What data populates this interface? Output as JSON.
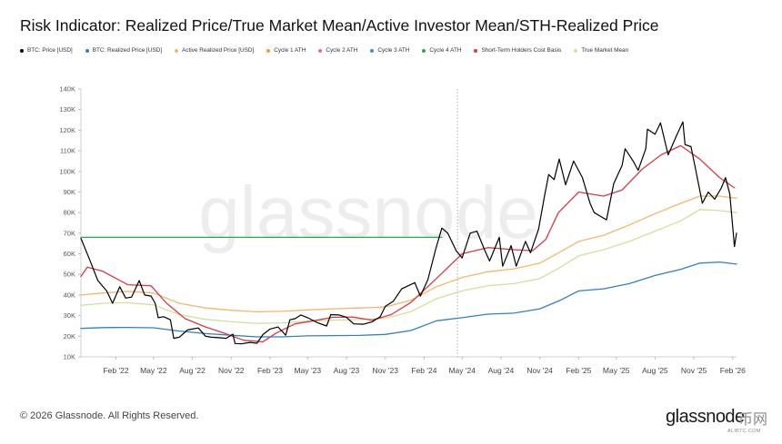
{
  "title": "Risk Indicator: Realized Price/True Market Mean/Active Investor Mean/STH-Realized Price",
  "legend": [
    {
      "label": "BTC: Price [USD]",
      "color": "#000000"
    },
    {
      "label": "BTC: Realized Price [USD]",
      "color": "#2f80c4"
    },
    {
      "label": "Active Realized Price [USD]",
      "color": "#f5b66b"
    },
    {
      "label": "Cycle 1 ATH",
      "color": "#f39c3c"
    },
    {
      "label": "Cycle 2 ATH",
      "color": "#f06b7a"
    },
    {
      "label": "Cycle 3 ATH",
      "color": "#3b8fd6"
    },
    {
      "label": "Cycle 4 ATH",
      "color": "#2aa84a"
    },
    {
      "label": "Short-Term Holders Cost Basis",
      "color": "#d63a47"
    },
    {
      "label": "True Market Mean",
      "color": "#cde39a"
    }
  ],
  "footer": "© 2026 Glassnode. All Rights Reserved.",
  "brand": "glassnode",
  "watermark": "glassnode",
  "sub_brand": "币网",
  "sub_brand_url": "ALIBTC.COM",
  "chart_data": {
    "type": "line",
    "title": "Risk Indicator: Realized Price/True Market Mean/Active Investor Mean/STH-Realized Price",
    "xlabel": "",
    "ylabel": "",
    "x_range": [
      "2021-11-10",
      "2026-02-10"
    ],
    "ylim": [
      10000,
      140000
    ],
    "y_ticks": [
      10000,
      20000,
      30000,
      40000,
      50000,
      60000,
      70000,
      80000,
      90000,
      100000,
      110000,
      120000,
      130000,
      140000
    ],
    "y_tick_labels": [
      "10K",
      "20K",
      "30K",
      "40K",
      "50K",
      "60K",
      "70K",
      "80K",
      "90K",
      "100K",
      "110K",
      "120K",
      "130K",
      "140K"
    ],
    "x_ticks": [
      {
        "date": "2022-02-01",
        "label": "Feb '22"
      },
      {
        "date": "2022-05-01",
        "label": "May '22"
      },
      {
        "date": "2022-08-01",
        "label": "Aug '22"
      },
      {
        "date": "2022-11-01",
        "label": "Nov '22"
      },
      {
        "date": "2023-02-01",
        "label": "Feb '23"
      },
      {
        "date": "2023-05-01",
        "label": "May '23"
      },
      {
        "date": "2023-08-01",
        "label": "Aug '23"
      },
      {
        "date": "2023-11-01",
        "label": "Nov '23"
      },
      {
        "date": "2024-02-01",
        "label": "Feb '24"
      },
      {
        "date": "2024-05-01",
        "label": "May '24"
      },
      {
        "date": "2024-08-01",
        "label": "Aug '24"
      },
      {
        "date": "2024-11-01",
        "label": "Nov '24"
      },
      {
        "date": "2025-02-01",
        "label": "Feb '25"
      },
      {
        "date": "2025-05-01",
        "label": "May '25"
      },
      {
        "date": "2025-08-01",
        "label": "Aug '25"
      },
      {
        "date": "2025-11-01",
        "label": "Nov '25"
      },
      {
        "date": "2026-02-01",
        "label": "Feb '26"
      }
    ],
    "vertical_marker_date": "2024-04-20",
    "grid": false,
    "series": [
      {
        "name": "BTC: Price [USD]",
        "color": "#000000",
        "x": [
          "2021-11-10",
          "2021-12-01",
          "2021-12-20",
          "2022-01-10",
          "2022-01-24",
          "2022-02-10",
          "2022-02-24",
          "2022-03-10",
          "2022-03-28",
          "2022-04-10",
          "2022-04-25",
          "2022-05-05",
          "2022-05-12",
          "2022-05-25",
          "2022-06-10",
          "2022-06-18",
          "2022-07-01",
          "2022-07-20",
          "2022-08-01",
          "2022-08-15",
          "2022-09-01",
          "2022-09-15",
          "2022-10-01",
          "2022-10-20",
          "2022-11-05",
          "2022-11-10",
          "2022-11-25",
          "2022-12-15",
          "2023-01-01",
          "2023-01-15",
          "2023-02-01",
          "2023-02-20",
          "2023-03-10",
          "2023-03-20",
          "2023-04-01",
          "2023-04-15",
          "2023-05-01",
          "2023-05-25",
          "2023-06-15",
          "2023-06-25",
          "2023-07-15",
          "2023-08-01",
          "2023-08-18",
          "2023-09-10",
          "2023-10-01",
          "2023-10-20",
          "2023-11-01",
          "2023-11-20",
          "2023-12-10",
          "2024-01-10",
          "2024-01-23",
          "2024-02-10",
          "2024-02-28",
          "2024-03-14",
          "2024-03-28",
          "2024-04-17",
          "2024-05-01",
          "2024-05-20",
          "2024-06-05",
          "2024-06-25",
          "2024-07-05",
          "2024-07-28",
          "2024-08-05",
          "2024-08-25",
          "2024-09-06",
          "2024-09-28",
          "2024-10-10",
          "2024-10-29",
          "2024-11-12",
          "2024-11-22",
          "2024-12-05",
          "2024-12-17",
          "2025-01-01",
          "2025-01-20",
          "2025-02-10",
          "2025-02-28",
          "2025-03-10",
          "2025-04-08",
          "2025-04-25",
          "2025-05-15",
          "2025-05-22",
          "2025-06-10",
          "2025-06-22",
          "2025-07-10",
          "2025-07-14",
          "2025-08-01",
          "2025-08-14",
          "2025-09-01",
          "2025-09-20",
          "2025-10-06",
          "2025-10-11",
          "2025-10-25",
          "2025-11-05",
          "2025-11-21",
          "2025-12-05",
          "2025-12-20",
          "2026-01-05",
          "2026-01-15",
          "2026-01-25",
          "2026-02-05",
          "2026-02-10"
        ],
        "y": [
          67500,
          57000,
          47000,
          42000,
          36000,
          44000,
          38500,
          39000,
          47000,
          40000,
          39500,
          36000,
          29000,
          29500,
          28000,
          19000,
          19500,
          23000,
          23500,
          24000,
          20000,
          19500,
          19300,
          19000,
          21000,
          16500,
          16300,
          17000,
          16600,
          20800,
          23500,
          24500,
          20500,
          28000,
          28500,
          30300,
          29000,
          26500,
          25000,
          30500,
          30300,
          29200,
          26000,
          25800,
          27000,
          29500,
          34500,
          37000,
          43000,
          46000,
          39500,
          47500,
          62000,
          72500,
          70000,
          61500,
          58000,
          70000,
          71000,
          61000,
          56500,
          68000,
          54000,
          64000,
          54000,
          66000,
          60500,
          72000,
          88000,
          98500,
          96000,
          106000,
          93500,
          105000,
          97000,
          84500,
          80000,
          76500,
          94000,
          103000,
          111000,
          105000,
          100500,
          111000,
          120500,
          118000,
          123500,
          108000,
          117000,
          124000,
          113000,
          112000,
          101000,
          84500,
          90000,
          86500,
          92000,
          97000,
          89000,
          63500,
          70000
        ]
      },
      {
        "name": "BTC: Realized Price [USD]",
        "color": "#2f80c4",
        "x": [
          "2021-11-10",
          "2022-01-01",
          "2022-03-01",
          "2022-05-01",
          "2022-07-01",
          "2022-09-01",
          "2022-11-01",
          "2023-01-01",
          "2023-03-01",
          "2023-05-01",
          "2023-07-01",
          "2023-09-01",
          "2023-11-01",
          "2024-01-01",
          "2024-03-01",
          "2024-05-01",
          "2024-07-01",
          "2024-09-01",
          "2024-11-01",
          "2024-12-20",
          "2025-02-01",
          "2025-04-01",
          "2025-06-01",
          "2025-08-01",
          "2025-10-01",
          "2025-11-15",
          "2026-01-01",
          "2026-02-10"
        ],
        "y": [
          23800,
          24200,
          24300,
          24100,
          22500,
          21300,
          20500,
          19700,
          19700,
          20200,
          20300,
          20400,
          20900,
          22800,
          27500,
          29000,
          30700,
          31200,
          33300,
          37500,
          42000,
          43000,
          45500,
          49500,
          52500,
          55500,
          56000,
          55000
        ]
      },
      {
        "name": "Active Realized Price [USD]",
        "color": "#f5b66b",
        "x": [
          "2021-11-10",
          "2022-01-01",
          "2022-03-01",
          "2022-05-01",
          "2022-07-01",
          "2022-09-01",
          "2022-11-01",
          "2023-01-01",
          "2023-03-01",
          "2023-05-01",
          "2023-07-01",
          "2023-09-01",
          "2023-11-01",
          "2024-01-01",
          "2024-03-01",
          "2024-05-01",
          "2024-07-01",
          "2024-09-01",
          "2024-11-01",
          "2024-12-20",
          "2025-02-01",
          "2025-04-01",
          "2025-06-01",
          "2025-08-01",
          "2025-10-01",
          "2025-11-15",
          "2026-01-01",
          "2026-02-10"
        ],
        "y": [
          40000,
          41000,
          41800,
          41000,
          36000,
          33700,
          32600,
          31800,
          32100,
          32800,
          33300,
          33700,
          34200,
          37500,
          44000,
          48500,
          51300,
          52700,
          55500,
          61000,
          66000,
          69000,
          74000,
          79500,
          84500,
          88000,
          88000,
          87000
        ]
      },
      {
        "name": "Cycle 4 ATH",
        "color": "#2aa84a",
        "x": [
          "2021-11-10",
          "2024-03-14"
        ],
        "y": [
          68000,
          68000
        ]
      },
      {
        "name": "Short-Term Holders Cost Basis",
        "color": "#d63a47",
        "x": [
          "2021-11-10",
          "2021-11-25",
          "2022-01-01",
          "2022-03-01",
          "2022-04-25",
          "2022-06-01",
          "2022-07-15",
          "2022-09-01",
          "2022-10-15",
          "2022-12-01",
          "2023-01-15",
          "2023-02-15",
          "2023-04-01",
          "2023-05-15",
          "2023-07-01",
          "2023-08-15",
          "2023-10-01",
          "2023-11-15",
          "2024-01-01",
          "2024-03-01",
          "2024-05-01",
          "2024-07-01",
          "2024-09-01",
          "2024-10-15",
          "2024-11-15",
          "2024-12-15",
          "2025-02-01",
          "2025-04-01",
          "2025-05-15",
          "2025-07-01",
          "2025-08-15",
          "2025-10-01",
          "2025-11-15",
          "2026-01-01",
          "2026-02-05"
        ],
        "y": [
          49000,
          53500,
          51500,
          45000,
          44500,
          36000,
          28500,
          24500,
          21500,
          18000,
          17300,
          21500,
          26000,
          27500,
          29200,
          29300,
          27800,
          30500,
          36500,
          48000,
          60000,
          63000,
          62000,
          61500,
          67000,
          80000,
          90000,
          88000,
          91000,
          101000,
          108000,
          112500,
          106000,
          97000,
          92000
        ]
      },
      {
        "name": "True Market Mean",
        "color": "#cde39a",
        "x": [
          "2021-11-10",
          "2022-01-01",
          "2022-03-01",
          "2022-05-01",
          "2022-07-01",
          "2022-09-01",
          "2022-11-01",
          "2023-01-01",
          "2023-03-01",
          "2023-05-01",
          "2023-07-01",
          "2023-09-01",
          "2023-11-01",
          "2024-01-01",
          "2024-03-01",
          "2024-05-01",
          "2024-07-01",
          "2024-09-01",
          "2024-11-01",
          "2024-12-20",
          "2025-02-01",
          "2025-04-01",
          "2025-06-01",
          "2025-08-01",
          "2025-10-01",
          "2025-11-15",
          "2026-01-01",
          "2026-02-10"
        ],
        "y": [
          35000,
          36000,
          36300,
          35200,
          30500,
          28200,
          27000,
          26200,
          26500,
          27300,
          27800,
          28100,
          28700,
          32000,
          38200,
          42000,
          44500,
          45500,
          48000,
          53500,
          59000,
          62000,
          66000,
          71000,
          76000,
          81500,
          81000,
          80000
        ]
      }
    ]
  }
}
